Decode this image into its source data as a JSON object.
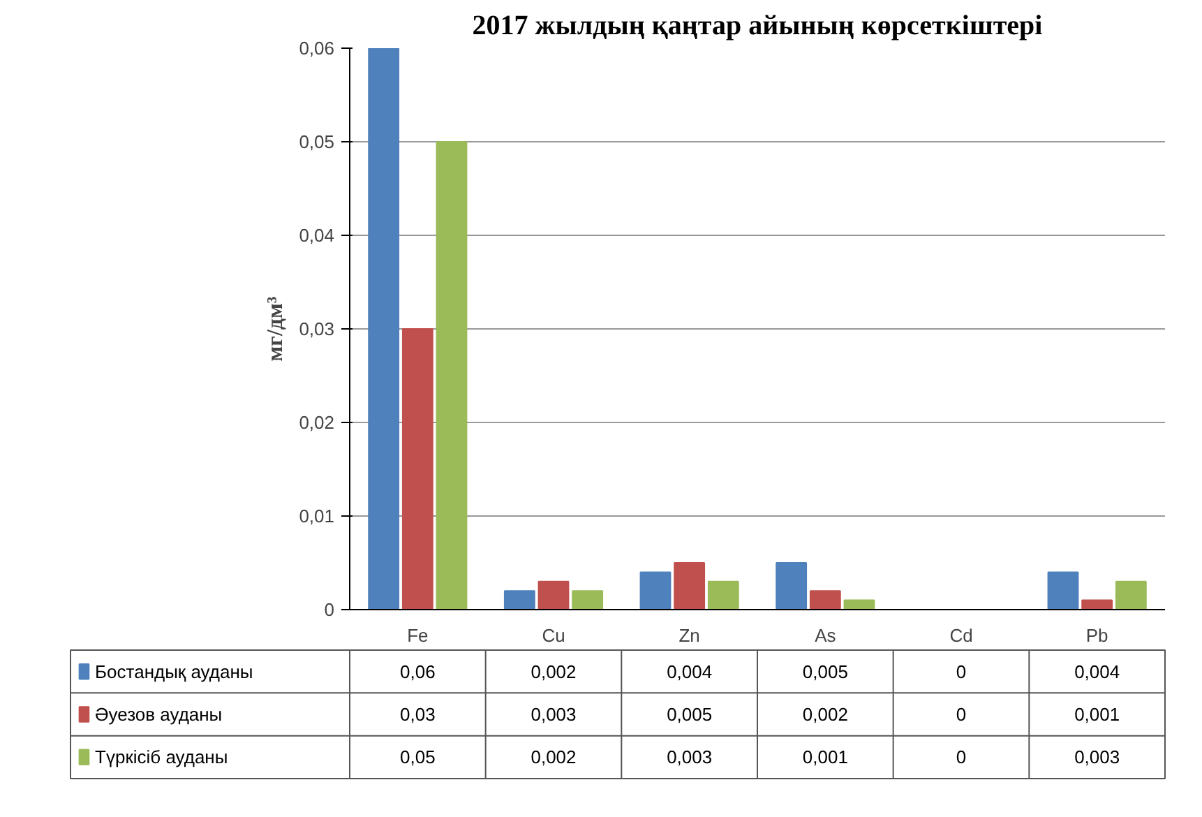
{
  "chart_data": {
    "type": "bar",
    "title": "2017 жылдың қаңтар айының көрсеткіштері",
    "ylabel": "мг/дм³",
    "categories": [
      "Fe",
      "Cu",
      "Zn",
      "As",
      "Cd",
      "Pb"
    ],
    "series": [
      {
        "name": "Бостандық ауданы",
        "color": "#4f81bd",
        "values": [
          0.06,
          0.002,
          0.004,
          0.005,
          0,
          0.004
        ],
        "value_labels": [
          "0,06",
          "0,002",
          "0,004",
          "0,005",
          "0",
          "0,004"
        ]
      },
      {
        "name": "Әуезов ауданы",
        "color": "#c0504d",
        "values": [
          0.03,
          0.003,
          0.005,
          0.002,
          0,
          0.001
        ],
        "value_labels": [
          "0,03",
          "0,003",
          "0,005",
          "0,002",
          "0",
          "0,001"
        ]
      },
      {
        "name": "Түркісіб ауданы",
        "color": "#9bbb59",
        "values": [
          0.05,
          0.002,
          0.003,
          0.001,
          0,
          0.003
        ],
        "value_labels": [
          "0,05",
          "0,002",
          "0,003",
          "0,001",
          "0",
          "0,003"
        ]
      }
    ],
    "ylim": [
      0,
      0.06
    ],
    "yticks": [
      {
        "value": 0,
        "label": "0"
      },
      {
        "value": 0.01,
        "label": "0,01"
      },
      {
        "value": 0.02,
        "label": "0,02"
      },
      {
        "value": 0.03,
        "label": "0,03"
      },
      {
        "value": 0.04,
        "label": "0,04"
      },
      {
        "value": 0.05,
        "label": "0,05"
      },
      {
        "value": 0.06,
        "label": "0,06"
      }
    ],
    "grid": "y",
    "legend": "bottom",
    "data_labels": true
  }
}
